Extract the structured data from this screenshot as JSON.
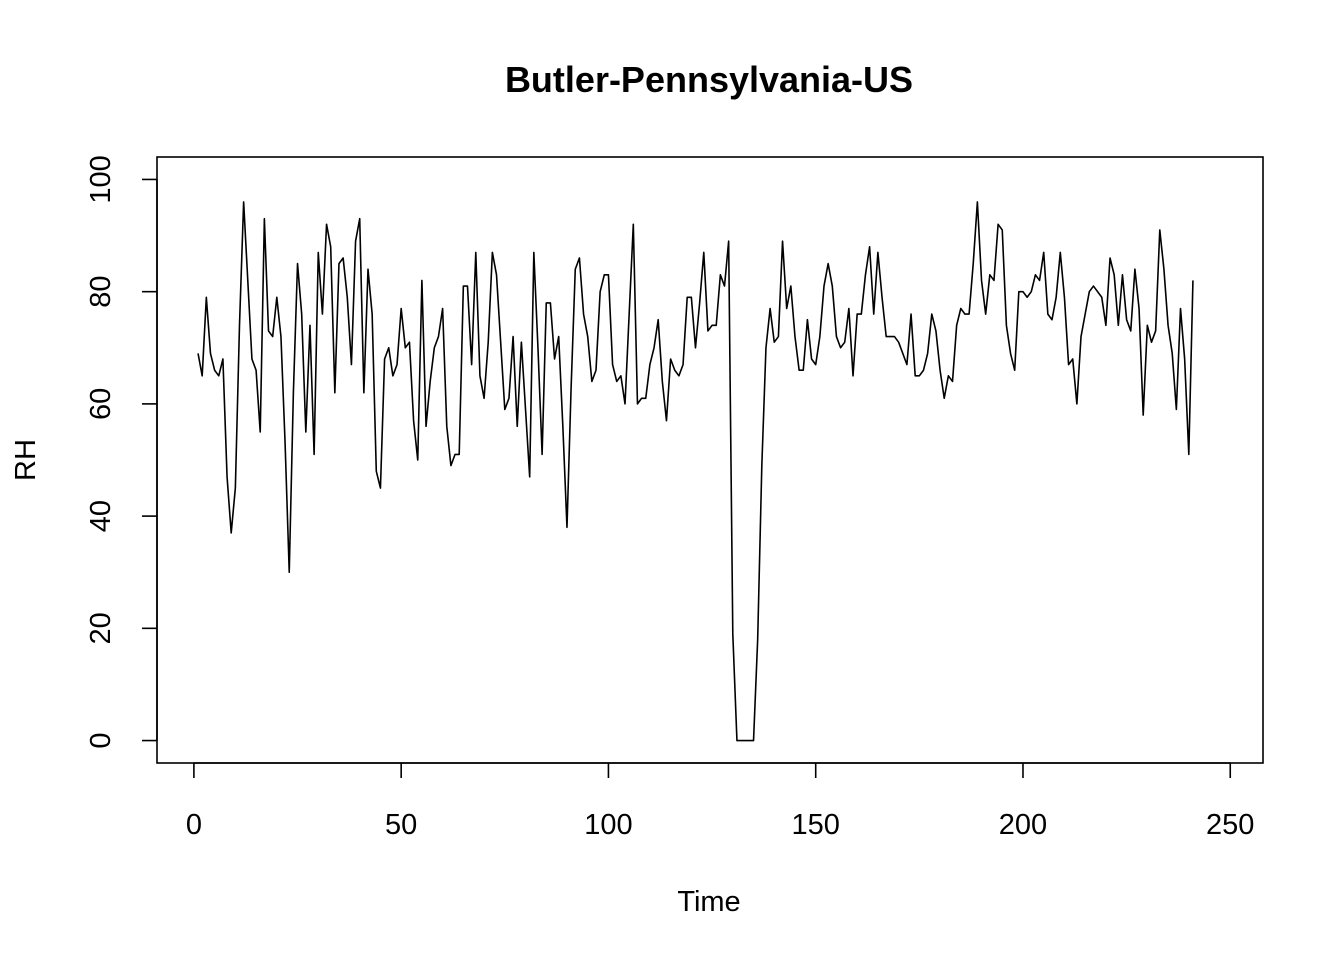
{
  "chart_data": {
    "type": "line",
    "title": "Butler-Pennsylvania-US",
    "xlabel": "Time",
    "ylabel": "RH",
    "xlim": [
      -8.9,
      257.9
    ],
    "ylim": [
      -4,
      104
    ],
    "x_ticks": [
      0,
      50,
      100,
      150,
      200,
      250
    ],
    "y_ticks": [
      0,
      20,
      40,
      60,
      80,
      100
    ],
    "x_tick_labels": [
      "0",
      "50",
      "100",
      "150",
      "200",
      "250"
    ],
    "y_tick_labels": [
      "0",
      "20",
      "40",
      "60",
      "80",
      "100"
    ],
    "grid": false,
    "legend": "none",
    "line_color": "#000000",
    "x_start": 1,
    "series": [
      {
        "values": [
          69,
          65,
          79,
          69,
          66,
          65,
          68,
          47,
          37,
          45,
          74,
          96,
          82,
          68,
          66,
          55,
          93,
          73,
          72,
          79,
          72,
          53,
          30,
          62,
          85,
          76,
          55,
          74,
          51,
          87,
          76,
          92,
          88,
          62,
          85,
          86,
          79,
          67,
          89,
          93,
          62,
          84,
          76,
          48,
          45,
          68,
          70,
          65,
          67,
          77,
          70,
          71,
          57,
          50,
          82,
          56,
          64,
          70,
          72,
          77,
          56,
          49,
          51,
          51,
          81,
          81,
          67,
          87,
          65,
          61,
          71,
          87,
          83,
          71,
          59,
          61,
          72,
          56,
          71,
          59,
          47,
          87,
          70,
          51,
          78,
          78,
          68,
          72,
          56,
          38,
          63,
          84,
          86,
          76,
          72,
          64,
          66,
          80,
          83,
          83,
          67,
          64,
          65,
          60,
          76,
          92,
          60,
          61,
          61,
          67,
          70,
          75,
          64,
          57,
          68,
          66,
          65,
          67,
          79,
          79,
          70,
          78,
          87,
          73,
          74,
          74,
          83,
          81,
          89,
          19,
          0,
          0,
          0,
          0,
          0,
          18,
          49,
          70,
          77,
          71,
          72,
          89,
          77,
          81,
          72,
          66,
          66,
          75,
          68,
          67,
          72,
          81,
          85,
          81,
          72,
          70,
          71,
          77,
          65,
          76,
          76,
          83,
          88,
          76,
          87,
          79,
          72,
          72,
          72,
          71,
          69,
          67,
          76,
          65,
          65,
          66,
          69,
          76,
          73,
          66,
          61,
          65,
          64,
          74,
          77,
          76,
          76,
          85,
          96,
          82,
          76,
          83,
          82,
          92,
          91,
          74,
          69,
          66,
          80,
          80,
          79,
          80,
          83,
          82,
          87,
          76,
          75,
          79,
          87,
          79,
          67,
          68,
          60,
          72,
          76,
          80,
          81,
          80,
          79,
          74,
          86,
          83,
          74,
          83,
          75,
          73,
          84,
          77,
          58,
          74,
          71,
          73,
          91,
          84,
          74,
          69,
          59,
          77,
          68,
          51,
          82
        ]
      }
    ]
  }
}
